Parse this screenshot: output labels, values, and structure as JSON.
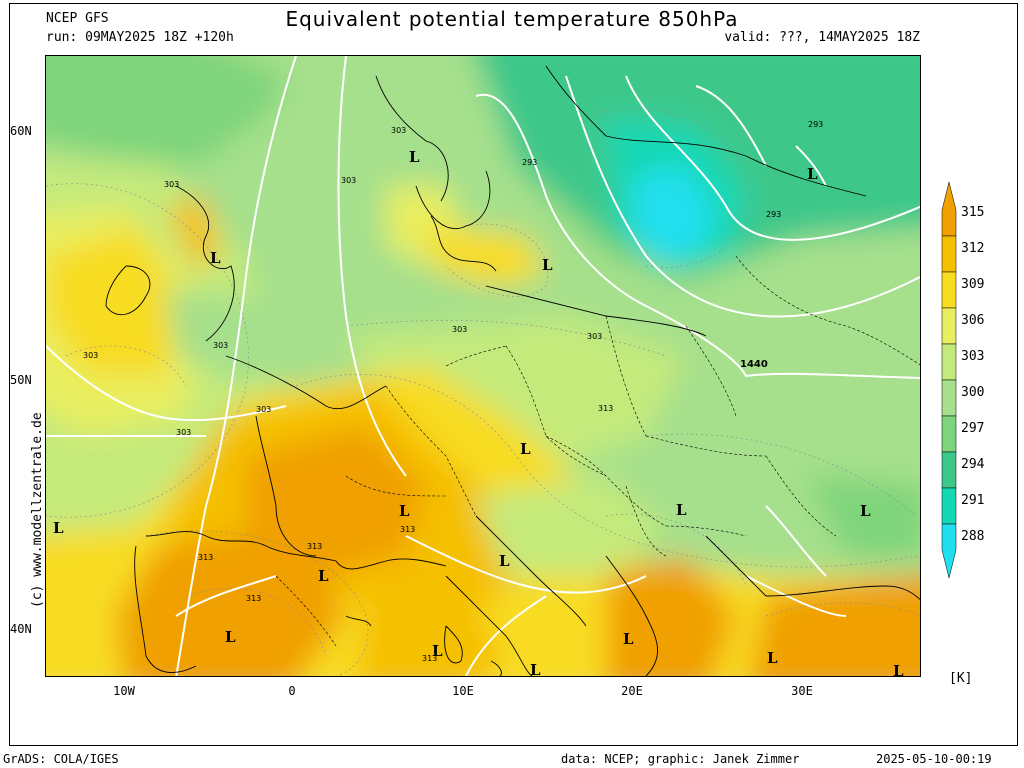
{
  "header": {
    "model": "NCEP GFS",
    "run": "run: 09MAY2025 18Z +120h",
    "title": "Equivalent potential temperature 850hPa",
    "valid": "valid: ???, 14MAY2025 18Z"
  },
  "side_credit": "(c)  www.modellzentrale.de",
  "footer": {
    "left": "GrADS: COLA/IGES",
    "center": "data: NCEP; graphic: Janek Zimmer",
    "right": "2025-05-10-00:19"
  },
  "lat_labels": [
    "60N",
    "50N",
    "40N"
  ],
  "lon_labels": [
    "10W",
    "0",
    "10E",
    "20E",
    "30E"
  ],
  "colorbar": {
    "unit": "[K]",
    "levels": [
      "315",
      "312",
      "309",
      "306",
      "303",
      "300",
      "297",
      "294",
      "291",
      "288"
    ],
    "colors": [
      "#f0a000",
      "#f5c000",
      "#f8dc20",
      "#e8ee60",
      "#c4ea7c",
      "#a6e08c",
      "#7ed47a",
      "#3cc88a",
      "#14d8b4",
      "#20e0f0"
    ]
  },
  "map": {
    "contour_labels": [
      "303",
      "303",
      "303",
      "303",
      "303",
      "303",
      "303",
      "303",
      "303",
      "293",
      "293",
      "293",
      "1440",
      "313",
      "313",
      "313",
      "313",
      "313",
      "313"
    ],
    "low_marker": "L"
  }
}
